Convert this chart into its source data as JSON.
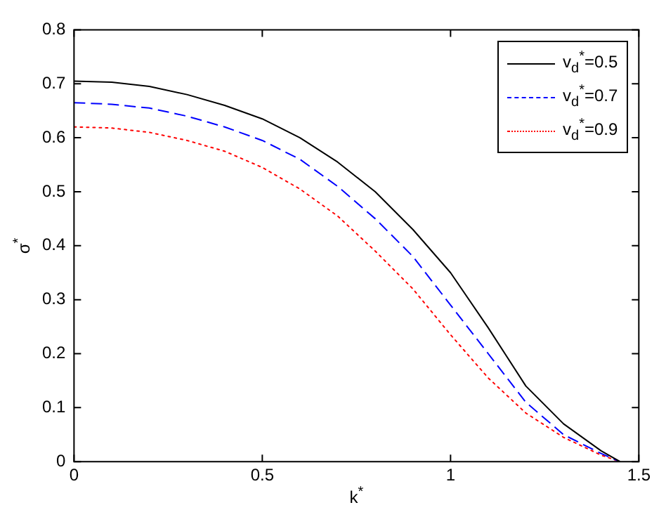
{
  "chart_data": {
    "type": "line",
    "xlabel": "k$^{*}$",
    "ylabel": "σ$^{*}$",
    "x": [
      0,
      0.1,
      0.2,
      0.3,
      0.4,
      0.5,
      0.6,
      0.7,
      0.8,
      0.9,
      1.0,
      1.1,
      1.2,
      1.3,
      1.4,
      1.45
    ],
    "series": [
      {
        "name": "v$_{d}$$^{*}$=0.5",
        "color": "#000000",
        "line_style": "solid",
        "values": [
          0.705,
          0.703,
          0.695,
          0.68,
          0.66,
          0.635,
          0.6,
          0.555,
          0.5,
          0.43,
          0.35,
          0.248,
          0.14,
          0.07,
          0.02,
          0
        ]
      },
      {
        "name": "v$_{d}$$^{*}$=0.7",
        "color": "#0000ff",
        "line_style": "dashed",
        "values": [
          0.665,
          0.662,
          0.655,
          0.64,
          0.62,
          0.595,
          0.56,
          0.51,
          0.45,
          0.38,
          0.29,
          0.2,
          0.11,
          0.05,
          0.015,
          0
        ]
      },
      {
        "name": "v$_{d}$$^{*}$=0.9",
        "color": "#ff0000",
        "line_style": "dotted",
        "values": [
          0.62,
          0.618,
          0.61,
          0.595,
          0.575,
          0.545,
          0.505,
          0.455,
          0.39,
          0.32,
          0.235,
          0.155,
          0.09,
          0.045,
          0.012,
          0
        ]
      }
    ],
    "xlim": [
      0,
      1.5
    ],
    "xticks": [
      0,
      0.5,
      1,
      1.5
    ],
    "ylim": [
      0,
      0.8
    ],
    "yticks": [
      0,
      0.1,
      0.2,
      0.3,
      0.4,
      0.5,
      0.6,
      0.7,
      0.8
    ],
    "grid": false,
    "legend": "top right",
    "marker": "none"
  }
}
